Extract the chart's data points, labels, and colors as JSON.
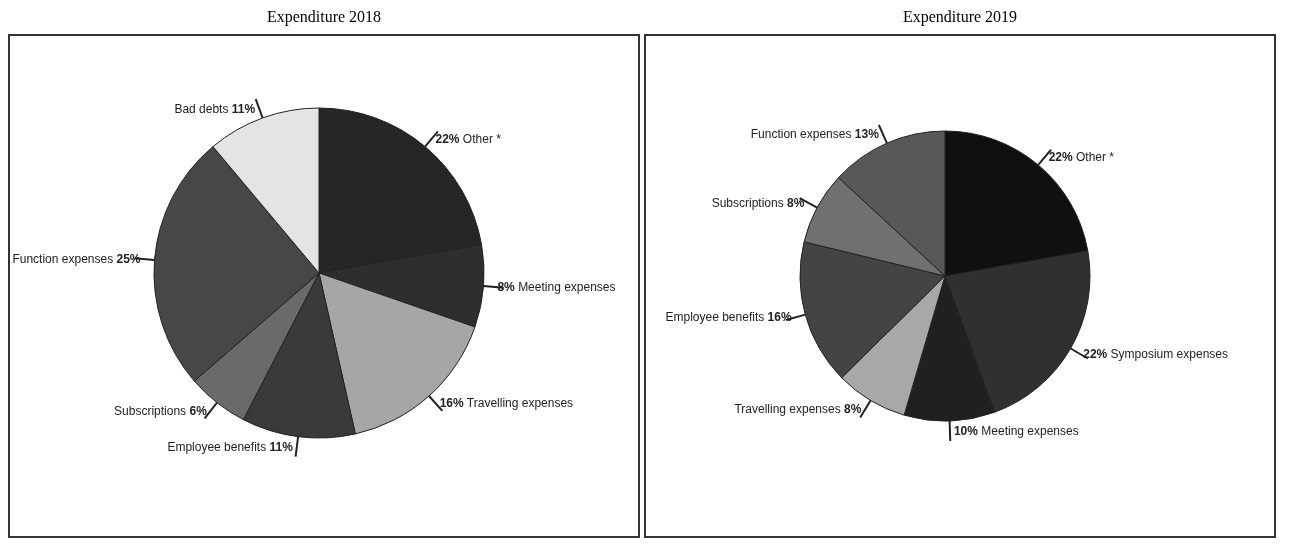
{
  "chart_data": [
    {
      "type": "pie",
      "title": "Expenditure 2018",
      "categories": [
        "Other *",
        "Meeting expenses",
        "Travelling expenses",
        "Employee benefits",
        "Subscriptions",
        "Function expenses",
        "Bad debts"
      ],
      "values": [
        22,
        8,
        16,
        11,
        6,
        25,
        11
      ],
      "value_labels": [
        "22%",
        "8%",
        "16%",
        "11%",
        "6%",
        "25%",
        "11%"
      ],
      "colors": [
        "#262626",
        "#2e2e2e",
        "#a6a6a6",
        "#3a3a3a",
        "#6a6a6a",
        "#474747",
        "#e4e4e4"
      ],
      "legend": false
    },
    {
      "type": "pie",
      "title": "Expenditure 2019",
      "categories": [
        "Other *",
        "Symposium expenses",
        "Meeting expenses",
        "Travelling expenses",
        "Employee benefits",
        "Subscriptions",
        "Function expenses"
      ],
      "values": [
        22,
        22,
        10,
        8,
        16,
        8,
        13
      ],
      "value_labels": [
        "22%",
        "22%",
        "10%",
        "8%",
        "16%",
        "8%",
        "13%"
      ],
      "colors": [
        "#101010",
        "#303030",
        "#202020",
        "#a8a8a8",
        "#444444",
        "#707070",
        "#585858"
      ],
      "legend": false
    }
  ]
}
